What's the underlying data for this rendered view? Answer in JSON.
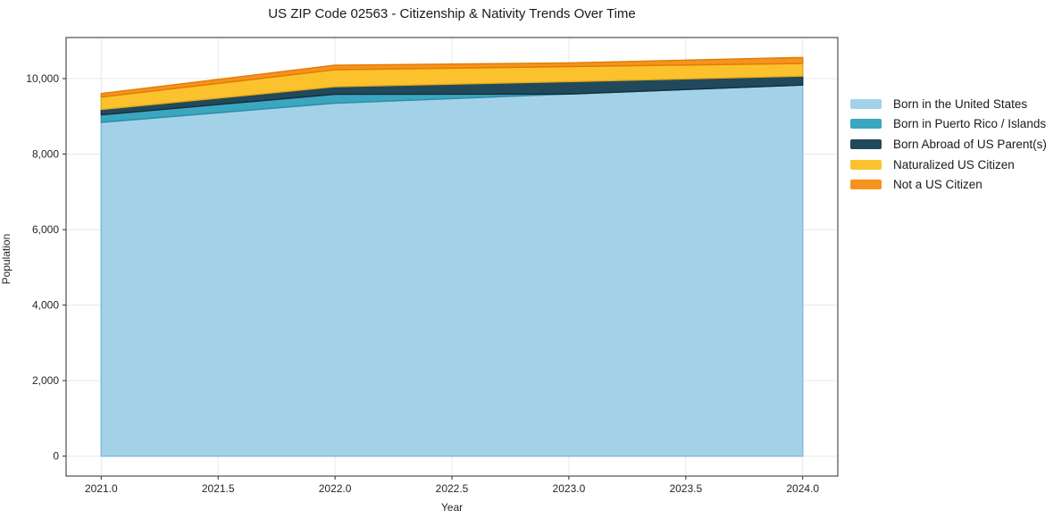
{
  "chart_data": {
    "type": "area",
    "stacked": true,
    "title": "US ZIP Code 02563 - Citizenship & Nativity Trends Over Time",
    "xlabel": "Year",
    "ylabel": "Population",
    "x": [
      2021,
      2022,
      2023,
      2024
    ],
    "series": [
      {
        "name": "Born in the United States",
        "color": "#A3D2E8",
        "edge": "#7EB9D6",
        "values": [
          8840,
          9350,
          9590,
          9830
        ]
      },
      {
        "name": "Born in Puerto Rico / Islands",
        "color": "#3AA6C0",
        "edge": "#2E8CA4",
        "values": [
          200,
          235,
          0,
          0
        ]
      },
      {
        "name": "Born Abroad of US Parent(s)",
        "color": "#21495C",
        "edge": "#152E3C",
        "values": [
          140,
          200,
          330,
          235
        ]
      },
      {
        "name": "Naturalized US Citizen",
        "color": "#FCC22D",
        "edge": "#E3A81B",
        "values": [
          330,
          450,
          400,
          335
        ]
      },
      {
        "name": "Not a US Citizen",
        "color": "#F6921E",
        "edge": "#E07C00",
        "values": [
          95,
          120,
          95,
          160
        ]
      }
    ],
    "xlim": [
      2020.85,
      2024.15
    ],
    "ylim": [
      -528,
      11088
    ],
    "x_ticks": [
      {
        "v": 2021.0,
        "label": "2021.0"
      },
      {
        "v": 2021.5,
        "label": "2021.5"
      },
      {
        "v": 2022.0,
        "label": "2022.0"
      },
      {
        "v": 2022.5,
        "label": "2022.5"
      },
      {
        "v": 2023.0,
        "label": "2023.0"
      },
      {
        "v": 2023.5,
        "label": "2023.5"
      },
      {
        "v": 2024.0,
        "label": "2024.0"
      }
    ],
    "y_ticks": [
      {
        "v": 0,
        "label": "0"
      },
      {
        "v": 2000,
        "label": "2,000"
      },
      {
        "v": 4000,
        "label": "4,000"
      },
      {
        "v": 6000,
        "label": "6,000"
      },
      {
        "v": 8000,
        "label": "8,000"
      },
      {
        "v": 10000,
        "label": "10,000"
      }
    ],
    "grid": true,
    "grid_color": "#e8e8e8",
    "spine_color": "#2b2b2b",
    "legend_position": "right-outside"
  }
}
